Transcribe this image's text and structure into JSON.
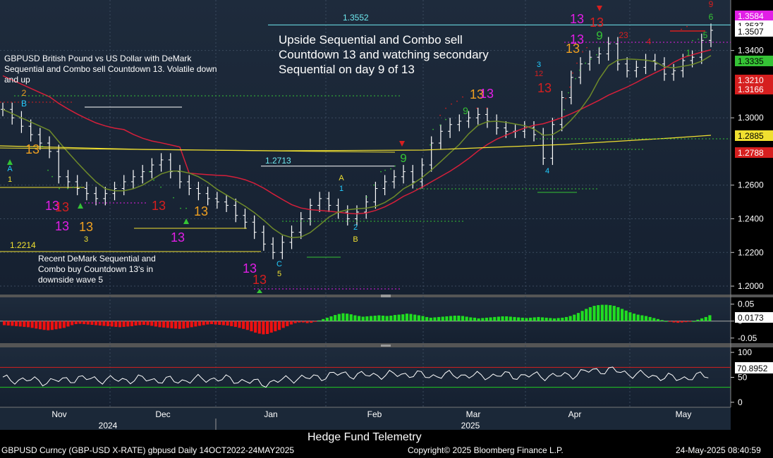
{
  "chart_data": {
    "type": "candlestick",
    "title": "GBPUSD British Pound vs US Dollar with DeMark Sequential and Combo sell Countdown 13. Volatile down and up",
    "annotations": {
      "upper_right": "Upside Sequential and Combo sell Countdown 13 and watching secondary Sequential on day 9 of 13",
      "lower_left": "Recent DeMark Sequential and Combo buy Countdown 13's in downside wave 5",
      "level_1_3552": "1.3552",
      "level_1_2713": "1.2713",
      "level_1_2214": "1.2214"
    },
    "price_panel": {
      "ylim": [
        1.195,
        1.37
      ],
      "ticks": [
        "1.2000",
        "1.2200",
        "1.2400",
        "1.2600",
        "1.3000",
        "1.3400"
      ],
      "right_labels": [
        {
          "text": "1.3584",
          "color": "#e11ee6"
        },
        {
          "text": "1.3537",
          "color": "#ffffff"
        },
        {
          "text": "1.3507",
          "color": "#ffffff"
        },
        {
          "text": "1.3335",
          "color": "#35c335"
        },
        {
          "text": "1.3210",
          "color": "#d61f1f"
        },
        {
          "text": "1.3166",
          "color": "#d61f1f"
        },
        {
          "text": "1.2885",
          "color": "#f0e030"
        },
        {
          "text": "1.2788",
          "color": "#d61f1f"
        }
      ],
      "price_series": [
        [
          1.305,
          1.3,
          1.295,
          1.29,
          1.285,
          1.28,
          1.265,
          1.262,
          1.258,
          1.255,
          1.252,
          1.255,
          1.258,
          1.262,
          1.265,
          1.268,
          1.272,
          1.275,
          1.268,
          1.262,
          1.258,
          1.255,
          1.252,
          1.25,
          1.248,
          1.242,
          1.238,
          1.232,
          1.225,
          1.22,
          1.226,
          1.232,
          1.24,
          1.248,
          1.252,
          1.248,
          1.244,
          1.24,
          1.244,
          1.25,
          1.258,
          1.262,
          1.265,
          1.268,
          1.262,
          1.272,
          1.285,
          1.292,
          1.296,
          1.298,
          1.3,
          1.302,
          1.298,
          1.294,
          1.292,
          1.292,
          1.294,
          1.29,
          1.276,
          1.296,
          1.312,
          1.324,
          1.332,
          1.336,
          1.338,
          1.344,
          1.332,
          1.328,
          1.33,
          1.334,
          1.332,
          1.326,
          1.328,
          1.334,
          1.336,
          1.346,
          1.352
        ]
      ],
      "ma_red_name": "moving average (slow)",
      "ma_green_name": "moving average (fast)"
    },
    "osc1": {
      "ylim": [
        -0.065,
        0.07
      ],
      "ticks": [
        "0.05",
        "0",
        "-0.05"
      ],
      "current": "0.0173",
      "values": [
        -0.012,
        -0.013,
        -0.014,
        -0.015,
        -0.016,
        -0.017,
        -0.018,
        -0.02,
        -0.022,
        -0.024,
        -0.026,
        -0.027,
        -0.026,
        -0.024,
        -0.022,
        -0.02,
        -0.016,
        -0.012,
        -0.009,
        -0.008,
        -0.009,
        -0.01,
        -0.011,
        -0.012,
        -0.013,
        -0.014,
        -0.015,
        -0.016,
        -0.017,
        -0.018,
        -0.017,
        -0.016,
        -0.015,
        -0.013,
        -0.012,
        -0.011,
        -0.012,
        -0.014,
        -0.016,
        -0.018,
        -0.019,
        -0.02,
        -0.021,
        -0.022,
        -0.023,
        -0.022,
        -0.02,
        -0.018,
        -0.016,
        -0.014,
        -0.012,
        -0.01,
        -0.009,
        -0.01,
        -0.011,
        -0.012,
        -0.013,
        -0.015,
        -0.017,
        -0.02,
        -0.023,
        -0.026,
        -0.03,
        -0.034,
        -0.037,
        -0.039,
        -0.038,
        -0.034,
        -0.03,
        -0.026,
        -0.02,
        -0.015,
        -0.01,
        -0.006,
        -0.004,
        -0.004,
        -0.006,
        -0.005,
        -0.002,
        0.002,
        0.006,
        0.01,
        0.014,
        0.018,
        0.021,
        0.023,
        0.022,
        0.02,
        0.017,
        0.015,
        0.013,
        0.014,
        0.015,
        0.016,
        0.017,
        0.016,
        0.015,
        0.016,
        0.018,
        0.019,
        0.02,
        0.022,
        0.021,
        0.019,
        0.017,
        0.015,
        0.012,
        0.01,
        0.011,
        0.012,
        0.013,
        0.014,
        0.015,
        0.016,
        0.016,
        0.015,
        0.013,
        0.011,
        0.01,
        0.008,
        0.009,
        0.01,
        0.011,
        0.012,
        0.013,
        0.014,
        0.014,
        0.013,
        0.012,
        0.011,
        0.01,
        0.009,
        0.01,
        0.011,
        0.012,
        0.011,
        0.01,
        0.009,
        0.008,
        0.009,
        0.01,
        0.012,
        0.015,
        0.019,
        0.024,
        0.03,
        0.036,
        0.041,
        0.045,
        0.047,
        0.048,
        0.048,
        0.047,
        0.045,
        0.041,
        0.036,
        0.031,
        0.026,
        0.022,
        0.019,
        0.017,
        0.015,
        0.012,
        0.009,
        0.006,
        0.003,
        0.0,
        -0.002,
        -0.004,
        -0.005,
        -0.004,
        -0.003,
        -0.002,
        0.0,
        0.004,
        0.008,
        0.012,
        0.0173
      ]
    },
    "osc2": {
      "ylim": [
        -10,
        110
      ],
      "ticks": [
        "100",
        "50",
        "0"
      ],
      "current": "70.8952",
      "upper": 70,
      "lower": 30
    },
    "x_axis": {
      "months": [
        "Nov",
        "Dec",
        "Jan",
        "Feb",
        "Mar",
        "Apr",
        "May"
      ],
      "years": [
        "2024",
        "2025"
      ]
    },
    "demark_labels": [
      {
        "t": "2",
        "c": "#f0a020"
      },
      {
        "t": "B",
        "c": "#22ccff"
      },
      {
        "t": "A",
        "c": "#22ccff"
      },
      {
        "t": "1",
        "c": "#f0e030"
      },
      {
        "t": "13",
        "c": "#f0a020"
      },
      {
        "t": "13",
        "c": "#e11ee6"
      },
      {
        "t": "13",
        "c": "#d61f1f"
      },
      {
        "t": "13",
        "c": "#e11ee6"
      },
      {
        "t": "13",
        "c": "#f0a020"
      },
      {
        "t": "3",
        "c": "#f0e030"
      },
      {
        "t": "13",
        "c": "#d61f1f"
      },
      {
        "t": "13",
        "c": "#f0a020"
      },
      {
        "t": "13",
        "c": "#e11ee6"
      },
      {
        "t": "13",
        "c": "#e11ee6"
      },
      {
        "t": "13",
        "c": "#d61f1f"
      },
      {
        "t": "C",
        "c": "#22ccff"
      },
      {
        "t": "5",
        "c": "#f0e030"
      },
      {
        "t": "A",
        "c": "#f0e030"
      },
      {
        "t": "1",
        "c": "#22ccff"
      },
      {
        "t": "2",
        "c": "#22ccff"
      },
      {
        "t": "B",
        "c": "#f0e030"
      },
      {
        "t": "9",
        "c": "#35c335"
      },
      {
        "t": "13",
        "c": "#f0a020"
      },
      {
        "t": "13",
        "c": "#e11ee6"
      },
      {
        "t": "9",
        "c": "#35c335"
      },
      {
        "t": "13",
        "c": "#d61f1f"
      },
      {
        "t": "3",
        "c": "#22ccff"
      },
      {
        "t": "12",
        "c": "#d61f1f"
      },
      {
        "t": "4",
        "c": "#22ccff"
      },
      {
        "t": "13",
        "c": "#e11ee6"
      },
      {
        "t": "13",
        "c": "#d61f1f"
      },
      {
        "t": "13",
        "c": "#e11ee6"
      },
      {
        "t": "13",
        "c": "#f0a020"
      },
      {
        "t": "9",
        "c": "#35c335"
      },
      {
        "t": "23",
        "c": "#d61f1f"
      },
      {
        "t": "4",
        "c": "#d61f1f"
      },
      {
        "t": "9",
        "c": "#d61f1f"
      },
      {
        "t": "6",
        "c": "#35c335"
      },
      {
        "t": "5",
        "c": "#35c335"
      },
      {
        "t": "1",
        "c": "#35c335"
      }
    ]
  },
  "footer": {
    "left": "GBPUSD Curncy (GBP-USD X-RATE) gbpusd  Daily 14OCT2022-24MAY2025",
    "center": "Copyright© 2025 Bloomberg Finance L.P.",
    "right": "24-May-2025 08:40:59",
    "watermark": "Hedge Fund Telemetry"
  }
}
